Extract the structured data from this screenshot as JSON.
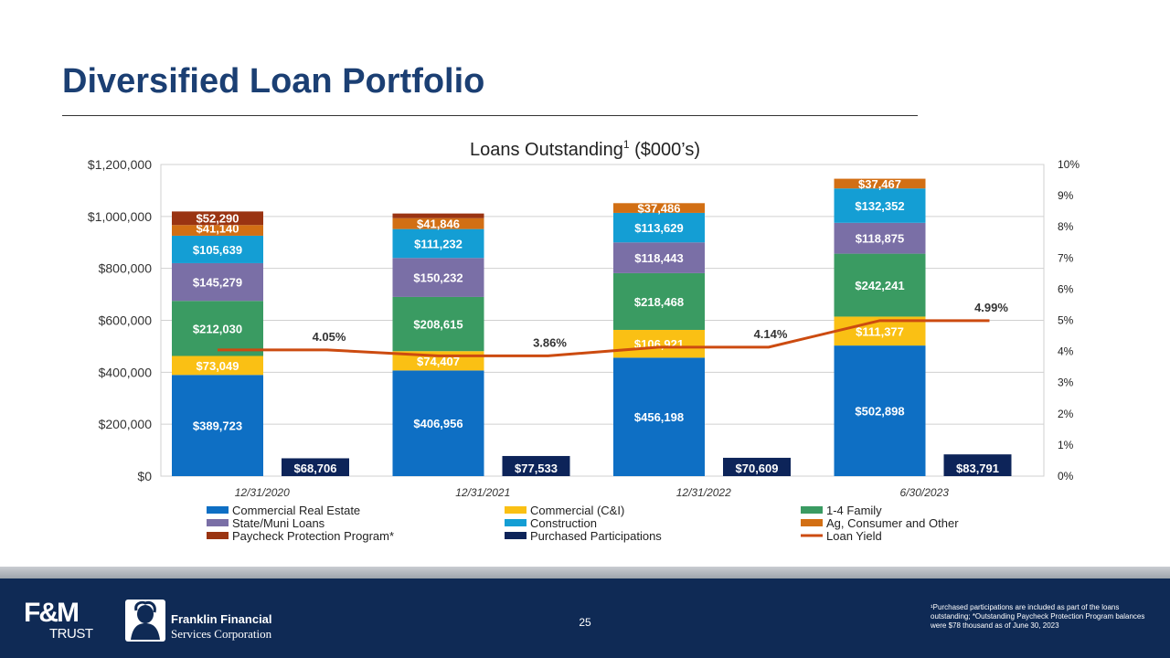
{
  "slide": {
    "title": "Diversified Loan Portfolio",
    "page_number": "25",
    "footnote": "¹Purchased participations are included as part of the loans outstanding; *Outstanding Paycheck Protection Program balances were $78 thousand as of June 30, 2023",
    "logos": {
      "fm_top": "F&M",
      "fm_bottom": "TRUST",
      "ffsc_line1": "Franklin Financial",
      "ffsc_line2": "Services Corporation"
    }
  },
  "colors": {
    "title": "#1b3f73",
    "footer": "#0f2a55",
    "commercial_real_estate": "#0e6fc4",
    "commercial_ci": "#fac014",
    "one_four_family": "#3a9b62",
    "state_muni": "#7a6fa6",
    "construction": "#149ed4",
    "ag_consumer_other": "#d26f14",
    "ppp": "#9a3412",
    "purchased_participations": "#0d2459",
    "loan_yield": "#cc4b10"
  },
  "chart_data": {
    "type": "bar",
    "stacked": true,
    "title": "Loans Outstanding",
    "title_superscript": "1",
    "title_suffix": " ($000’s)",
    "categories": [
      "12/31/2020",
      "12/31/2021",
      "12/31/2022",
      "6/30/2023"
    ],
    "ylim": [
      0,
      1200000
    ],
    "yticks": [
      "$0",
      "$200,000",
      "$400,000",
      "$600,000",
      "$800,000",
      "$1,000,000",
      "$1,200,000"
    ],
    "ytick_values": [
      0,
      200000,
      400000,
      600000,
      800000,
      1000000,
      1200000
    ],
    "y2lim": [
      0,
      10
    ],
    "y2ticks": [
      "0%",
      "1%",
      "2%",
      "3%",
      "4%",
      "5%",
      "6%",
      "7%",
      "8%",
      "9%",
      "10%"
    ],
    "grid": true,
    "legend_position": "bottom",
    "series": [
      {
        "name": "Commercial Real Estate",
        "key": "commercial_real_estate",
        "values": [
          389723,
          406956,
          456198,
          502898
        ],
        "labels": [
          "$389,723",
          "$406,956",
          "$456,198",
          "$502,898"
        ]
      },
      {
        "name": "Commercial (C&I)",
        "key": "commercial_ci",
        "values": [
          73049,
          74407,
          106921,
          111377
        ],
        "labels": [
          "$73,049",
          "$74,407",
          "$106,921",
          "$111,377"
        ]
      },
      {
        "name": "1-4 Family",
        "key": "one_four_family",
        "values": [
          212030,
          208615,
          218468,
          242241
        ],
        "labels": [
          "$212,030",
          "$208,615",
          "$218,468",
          "$242,241"
        ]
      },
      {
        "name": "State/Muni Loans",
        "key": "state_muni",
        "values": [
          145279,
          150232,
          118443,
          118875
        ],
        "labels": [
          "$145,279",
          "$150,232",
          "$118,443",
          "$118,875"
        ]
      },
      {
        "name": "Construction",
        "key": "construction",
        "values": [
          105639,
          111232,
          113629,
          132352
        ],
        "labels": [
          "$105,639",
          "$111,232",
          "$113,629",
          "$132,352"
        ]
      },
      {
        "name": "Ag, Consumer and Other",
        "key": "ag_consumer_other",
        "values": [
          41140,
          41846,
          37486,
          37467
        ],
        "labels": [
          "$41,140",
          "$41,846",
          "$37,486",
          "$37,467"
        ]
      },
      {
        "name": "Paycheck Protection Program*",
        "key": "ppp",
        "values": [
          52290,
          18000,
          0,
          0
        ],
        "labels": [
          "$52,290",
          "",
          "",
          ""
        ]
      }
    ],
    "purchased_participations": {
      "name": "Purchased Participations",
      "values": [
        68706,
        77533,
        70609,
        83791
      ],
      "labels": [
        "$68,706",
        "$77,533",
        "$70,609",
        "$83,791"
      ]
    },
    "loan_yield": {
      "name": "Loan Yield",
      "values": [
        4.05,
        3.86,
        4.14,
        4.99
      ],
      "labels": [
        "4.05%",
        "3.86%",
        "4.14%",
        "4.99%"
      ]
    },
    "legend": [
      "Commercial Real Estate",
      "Commercial (C&I)",
      "1-4 Family",
      "State/Muni Loans",
      "Construction",
      "Ag, Consumer and Other",
      "Paycheck Protection Program*",
      "Purchased Participations",
      "Loan Yield"
    ]
  }
}
